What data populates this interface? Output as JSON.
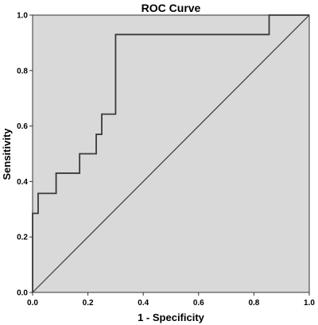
{
  "chart_data": {
    "type": "line",
    "title": "ROC Curve",
    "xlabel": "1 - Specificity",
    "ylabel": "Sensitivity",
    "xlim": [
      0.0,
      1.0
    ],
    "ylim": [
      0.0,
      1.0
    ],
    "x_ticks": [
      "0.0",
      "0.2",
      "0.4",
      "0.6",
      "0.8",
      "1.0"
    ],
    "y_ticks": [
      "0.0",
      "0.2",
      "0.4",
      "0.6",
      "0.8",
      "1.0"
    ],
    "grid": false,
    "legend": "none",
    "colors": {
      "plot_background": "#d9d9d9",
      "curve": "#3a3a3a",
      "reference_line": "#3a3a3a"
    },
    "series": [
      {
        "x": [
          0.0,
          0.0,
          0.02,
          0.02,
          0.085,
          0.085,
          0.17,
          0.17,
          0.23,
          0.23,
          0.25,
          0.25,
          0.3,
          0.3,
          0.855,
          0.855,
          1.0
        ],
        "y": [
          0.0,
          0.285,
          0.285,
          0.357,
          0.357,
          0.43,
          0.43,
          0.5,
          0.5,
          0.57,
          0.57,
          0.643,
          0.643,
          0.93,
          0.93,
          1.0,
          1.0
        ]
      },
      {
        "x": [
          0.0,
          1.0
        ],
        "y": [
          0.0,
          1.0
        ]
      }
    ]
  }
}
